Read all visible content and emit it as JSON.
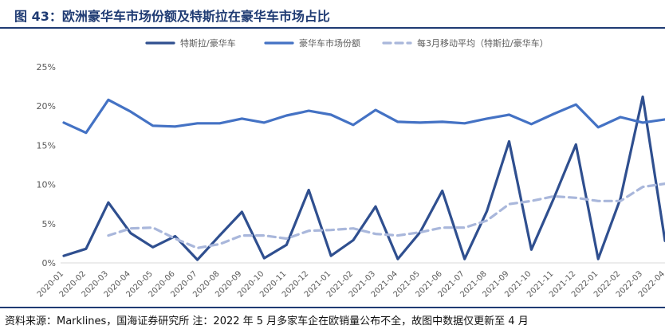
{
  "title": "图 43：欧洲豪华车市场份额及特斯拉在豪华车市场占比",
  "source": "资料来源：Marklines，国海证券研究所 注：2022 年 5 月多家车企在欧销量公布不全，故图中数据仅更新至 4 月",
  "colors": {
    "tesla": "#2f4f8f",
    "luxury": "#4472c4",
    "ma": "#a9b7db",
    "axis_text": "#595959",
    "grid": "#d9d9d9",
    "accent": "#1f3b73"
  },
  "chart_data": {
    "type": "line",
    "title": "",
    "xlabel": "",
    "ylabel": "",
    "ylim": [
      0,
      25
    ],
    "yticks": [
      "0%",
      "5%",
      "10%",
      "15%",
      "20%",
      "25%"
    ],
    "grid": false,
    "legend_position": "top",
    "categories": [
      "2020-01",
      "2020-02",
      "2020-03",
      "2020-04",
      "2020-05",
      "2020-06",
      "2020-07",
      "2020-08",
      "2020-09",
      "2020-10",
      "2020-11",
      "2020-12",
      "2021-01",
      "2021-02",
      "2021-03",
      "2021-04",
      "2021-05",
      "2021-06",
      "2021-07",
      "2021-08",
      "2021-09",
      "2021-10",
      "2021-11",
      "2021-12",
      "2022-01",
      "2022-02",
      "2022-03",
      "2022-04"
    ],
    "series": [
      {
        "name": "特斯拉/豪华车",
        "style": "solid-dark",
        "values": [
          0.9,
          1.8,
          7.7,
          3.8,
          2.0,
          3.4,
          0.4,
          3.5,
          6.5,
          0.6,
          2.3,
          9.3,
          0.9,
          2.9,
          7.2,
          0.5,
          3.9,
          9.2,
          0.5,
          6.6,
          15.5,
          1.7,
          8.2,
          15.1,
          0.5,
          8.2,
          21.2,
          2.8
        ]
      },
      {
        "name": "豪华车市场份额",
        "style": "solid-light",
        "values": [
          17.9,
          16.6,
          20.8,
          19.3,
          17.5,
          17.4,
          17.8,
          17.8,
          18.4,
          17.9,
          18.8,
          19.4,
          18.9,
          17.6,
          19.5,
          18.0,
          17.9,
          18.0,
          17.8,
          18.4,
          18.9,
          17.7,
          19.0,
          20.2,
          17.3,
          18.6,
          17.9,
          18.3
        ]
      },
      {
        "name": "每3月移动平均（特斯拉/豪华车）",
        "style": "dashed",
        "values": [
          null,
          null,
          3.5,
          4.4,
          4.5,
          3.1,
          1.9,
          2.4,
          3.5,
          3.5,
          3.1,
          4.1,
          4.2,
          4.4,
          3.7,
          3.5,
          3.9,
          4.5,
          4.5,
          5.4,
          7.5,
          7.9,
          8.5,
          8.3,
          7.9,
          7.9,
          9.7,
          10.1
        ]
      }
    ]
  }
}
